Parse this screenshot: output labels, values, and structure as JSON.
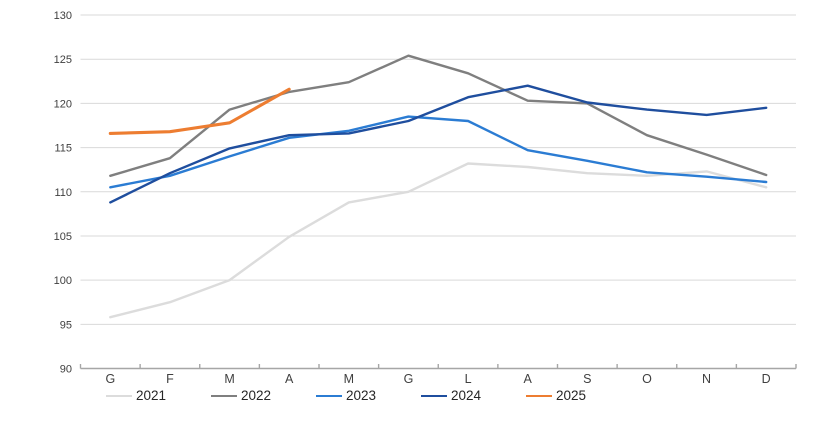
{
  "chart_data": {
    "type": "line",
    "title": "",
    "xlabel": "",
    "ylabel": "",
    "categories": [
      "G",
      "F",
      "M",
      "A",
      "M",
      "G",
      "L",
      "A",
      "S",
      "O",
      "N",
      "D"
    ],
    "y_axis": {
      "min": 90,
      "max": 130,
      "step": 5
    },
    "grid": true,
    "legend_position": "bottom",
    "colors": {
      "gridline": "#d9d9d9",
      "axis_line": "#a6a6a6",
      "tick_label": "#404040"
    },
    "series": [
      {
        "name": "2021",
        "color": "#dcdcdc",
        "line_width": 2.4,
        "values": [
          95.8,
          97.5,
          100.0,
          104.9,
          108.8,
          110.0,
          113.2,
          112.8,
          112.1,
          111.8,
          112.3,
          110.5
        ]
      },
      {
        "name": "2022",
        "color": "#7f7f7f",
        "line_width": 2.4,
        "values": [
          111.8,
          113.8,
          119.3,
          121.3,
          122.4,
          125.4,
          123.4,
          120.3,
          120.0,
          116.4,
          114.2,
          111.9
        ]
      },
      {
        "name": "2023",
        "color": "#2b7cd3",
        "line_width": 2.4,
        "values": [
          110.5,
          111.8,
          114.0,
          116.1,
          116.9,
          118.5,
          118.0,
          114.7,
          113.5,
          112.2,
          111.7,
          111.1
        ]
      },
      {
        "name": "2024",
        "color": "#1f4e9e",
        "line_width": 2.4,
        "values": [
          108.8,
          112.1,
          114.9,
          116.4,
          116.6,
          118.0,
          120.7,
          122.0,
          120.1,
          119.3,
          118.7,
          119.5
        ]
      },
      {
        "name": "2025",
        "color": "#ed7d31",
        "line_width": 3.1,
        "values": [
          116.6,
          116.8,
          117.8,
          121.6,
          null,
          null,
          null,
          null,
          null,
          null,
          null,
          null
        ]
      }
    ]
  }
}
